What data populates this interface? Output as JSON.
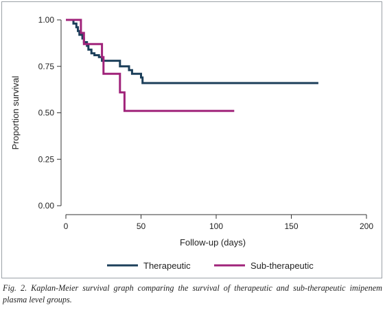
{
  "chart_data": {
    "type": "line",
    "subtype": "kaplan-meier-step",
    "xlabel": "Follow-up (days)",
    "ylabel": "Proportion survival",
    "xlim": [
      0,
      200
    ],
    "ylim": [
      0,
      1
    ],
    "xticks": [
      {
        "value": 0,
        "label": "0"
      },
      {
        "value": 50,
        "label": "50"
      },
      {
        "value": 100,
        "label": "100"
      },
      {
        "value": 150,
        "label": "150"
      },
      {
        "value": 200,
        "label": "200"
      }
    ],
    "yticks": [
      {
        "value": 0,
        "label": "0.00"
      },
      {
        "value": 0.25,
        "label": "0.25"
      },
      {
        "value": 0.5,
        "label": "0.50"
      },
      {
        "value": 0.75,
        "label": "0.75"
      },
      {
        "value": 1,
        "label": "1.00"
      }
    ],
    "grid": false,
    "legend_position": "bottom",
    "series": [
      {
        "name": "Therapeutic",
        "color": "#1c3f5a",
        "points": [
          [
            0,
            1.0
          ],
          [
            3,
            1.0
          ],
          [
            5,
            0.98
          ],
          [
            7,
            0.96
          ],
          [
            8,
            0.94
          ],
          [
            9,
            0.92
          ],
          [
            11,
            0.9
          ],
          [
            12,
            0.88
          ],
          [
            14,
            0.86
          ],
          [
            15,
            0.84
          ],
          [
            17,
            0.82
          ],
          [
            19,
            0.81
          ],
          [
            22,
            0.8
          ],
          [
            24,
            0.78
          ],
          [
            36,
            0.75
          ],
          [
            42,
            0.73
          ],
          [
            44,
            0.71
          ],
          [
            50,
            0.69
          ],
          [
            51,
            0.66
          ],
          [
            168,
            0.66
          ]
        ]
      },
      {
        "name": "Sub-therapeutic",
        "color": "#a0237a",
        "points": [
          [
            0,
            1.0
          ],
          [
            10,
            0.93
          ],
          [
            12,
            0.87
          ],
          [
            24,
            0.8
          ],
          [
            25,
            0.71
          ],
          [
            36,
            0.61
          ],
          [
            39,
            0.51
          ],
          [
            112,
            0.51
          ]
        ]
      }
    ]
  },
  "caption": "Fig. 2. Kaplan-Meier survival graph comparing the survival of therapeutic and sub-therapeutic imipenem plasma level groups."
}
